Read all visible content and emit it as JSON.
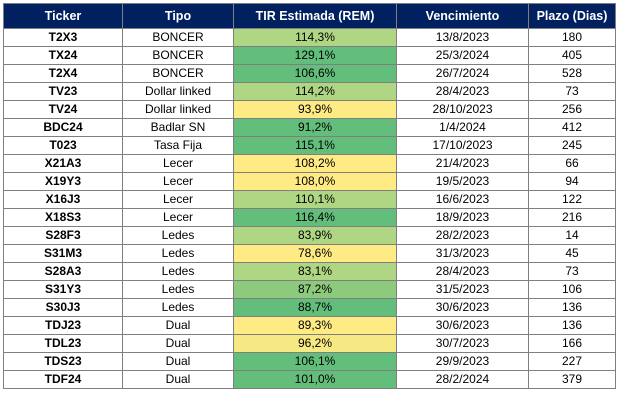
{
  "table": {
    "headers": [
      "Ticker",
      "Tipo",
      "TIR Estimada (REM)",
      "Vencimiento",
      "Plazo (Dias)"
    ],
    "rows": [
      {
        "ticker": "T2X3",
        "tipo": "BONCER",
        "tir": "114,3%",
        "venc": "13/8/2023",
        "plazo": "180",
        "tir_color": "#afd683"
      },
      {
        "ticker": "TX24",
        "tipo": "BONCER",
        "tir": "129,1%",
        "venc": "25/3/2024",
        "plazo": "405",
        "tir_color": "#63be7b"
      },
      {
        "ticker": "T2X4",
        "tipo": "BONCER",
        "tir": "106,6%",
        "venc": "26/7/2024",
        "plazo": "528",
        "tir_color": "#63be7b"
      },
      {
        "ticker": "TV23",
        "tipo": "Dollar linked",
        "tir": "114,2%",
        "venc": "28/4/2023",
        "plazo": "73",
        "tir_color": "#afd683"
      },
      {
        "ticker": "TV24",
        "tipo": "Dollar linked",
        "tir": "93,9%",
        "venc": "28/10/2023",
        "plazo": "256",
        "tir_color": "#ffeb84"
      },
      {
        "ticker": "BDC24",
        "tipo": "Badlar SN",
        "tir": "91,2%",
        "venc": "1/4/2024",
        "plazo": "412",
        "tir_color": "#63be7b"
      },
      {
        "ticker": "T023",
        "tipo": "Tasa Fija",
        "tir": "115,1%",
        "venc": "17/10/2023",
        "plazo": "245",
        "tir_color": "#63be7b"
      },
      {
        "ticker": "X21A3",
        "tipo": "Lecer",
        "tir": "108,2%",
        "venc": "21/4/2023",
        "plazo": "66",
        "tir_color": "#ffeb84"
      },
      {
        "ticker": "X19Y3",
        "tipo": "Lecer",
        "tir": "108,0%",
        "venc": "19/5/2023",
        "plazo": "94",
        "tir_color": "#ffeb84"
      },
      {
        "ticker": "X16J3",
        "tipo": "Lecer",
        "tir": "110,1%",
        "venc": "16/6/2023",
        "plazo": "122",
        "tir_color": "#afd683"
      },
      {
        "ticker": "X18S3",
        "tipo": "Lecer",
        "tir": "116,4%",
        "venc": "18/9/2023",
        "plazo": "216",
        "tir_color": "#63be7b"
      },
      {
        "ticker": "S28F3",
        "tipo": "Ledes",
        "tir": "83,9%",
        "venc": "28/2/2023",
        "plazo": "14",
        "tir_color": "#afd683"
      },
      {
        "ticker": "S31M3",
        "tipo": "Ledes",
        "tir": "78,6%",
        "venc": "31/3/2023",
        "plazo": "45",
        "tir_color": "#ffeb84"
      },
      {
        "ticker": "S28A3",
        "tipo": "Ledes",
        "tir": "83,1%",
        "venc": "28/4/2023",
        "plazo": "73",
        "tir_color": "#afd683"
      },
      {
        "ticker": "S31Y3",
        "tipo": "Ledes",
        "tir": "87,2%",
        "venc": "31/5/2023",
        "plazo": "106",
        "tir_color": "#8dca7e"
      },
      {
        "ticker": "S30J3",
        "tipo": "Ledes",
        "tir": "88,7%",
        "venc": "30/6/2023",
        "plazo": "136",
        "tir_color": "#63be7b"
      },
      {
        "ticker": "TDJ23",
        "tipo": "Dual",
        "tir": "89,3%",
        "venc": "30/6/2023",
        "plazo": "136",
        "tir_color": "#ffeb84"
      },
      {
        "ticker": "TDL23",
        "tipo": "Dual",
        "tir": "96,2%",
        "venc": "30/7/2023",
        "plazo": "166",
        "tir_color": "#f6e883"
      },
      {
        "ticker": "TDS23",
        "tipo": "Dual",
        "tir": "106,1%",
        "venc": "29/9/2023",
        "plazo": "227",
        "tir_color": "#63be7b"
      },
      {
        "ticker": "TDF24",
        "tipo": "Dual",
        "tir": "101,0%",
        "venc": "28/2/2024",
        "plazo": "379",
        "tir_color": "#63be7b"
      }
    ]
  },
  "colors": {
    "header_bg": "#002060",
    "header_text": "#ffffff",
    "border": "#7f7f7f"
  }
}
